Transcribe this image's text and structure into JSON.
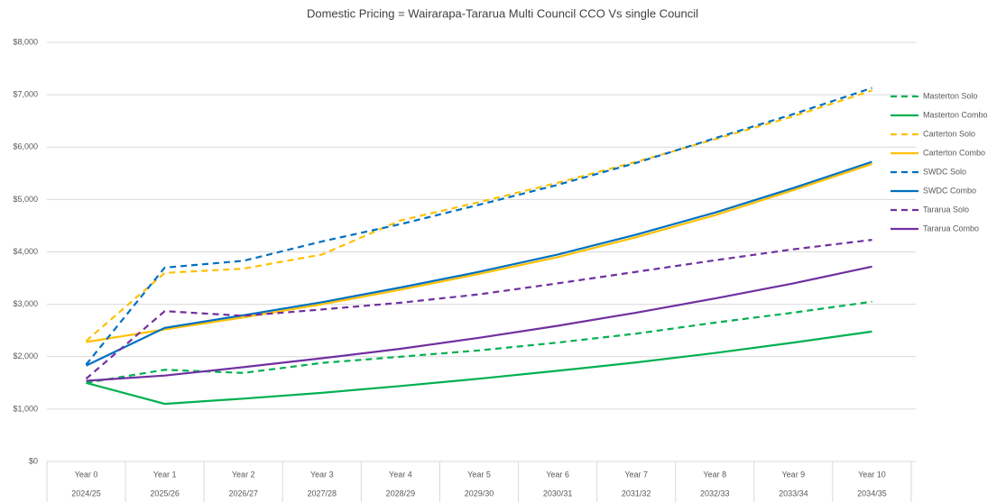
{
  "chart_data": {
    "type": "line",
    "title": "Domestic Pricing = Wairarapa-Tararua Multi Council CCO Vs single Council",
    "categories": [
      "Year 0",
      "Year 1",
      "Year 2",
      "Year 3",
      "Year 4",
      "Year 5",
      "Year 6",
      "Year 7",
      "Year 8",
      "Year 9",
      "Year 10"
    ],
    "periods": [
      "2024/25",
      "2025/26",
      "2026/27",
      "2027/28",
      "2028/29",
      "2029/30",
      "2030/31",
      "2031/32",
      "2032/33",
      "2033/34",
      "2034/35"
    ],
    "ylim": [
      0,
      8000
    ],
    "yticks": [
      {
        "value": 0,
        "label": "$0"
      },
      {
        "value": 1000,
        "label": "$1,000"
      },
      {
        "value": 2000,
        "label": "$2,000"
      },
      {
        "value": 3000,
        "label": "$3,000"
      },
      {
        "value": 4000,
        "label": "$4,000"
      },
      {
        "value": 5000,
        "label": "$5,000"
      },
      {
        "value": 6000,
        "label": "$6,000"
      },
      {
        "value": 7000,
        "label": "$7,000"
      },
      {
        "value": 8000,
        "label": "$8,000"
      }
    ],
    "grid": true,
    "legend": "right",
    "series": [
      {
        "name": "Masterton Solo",
        "color": "#00b050",
        "dashed": true,
        "values": [
          1500,
          1750,
          1690,
          1880,
          2000,
          2120,
          2270,
          2440,
          2650,
          2840,
          3050
        ]
      },
      {
        "name": "Masterton Combo",
        "color": "#00b050",
        "dashed": false,
        "values": [
          1500,
          1100,
          1200,
          1310,
          1440,
          1580,
          1730,
          1890,
          2070,
          2270,
          2480
        ]
      },
      {
        "name": "Carterton Solo",
        "color": "#ffc000",
        "dashed": true,
        "values": [
          2300,
          3600,
          3680,
          3950,
          4600,
          4950,
          5320,
          5720,
          6150,
          6590,
          7080
        ]
      },
      {
        "name": "Carterton Combo",
        "color": "#ffc000",
        "dashed": false,
        "values": [
          2280,
          2520,
          2750,
          3000,
          3280,
          3580,
          3900,
          4280,
          4700,
          5180,
          5680
        ]
      },
      {
        "name": "SWDC Solo",
        "color": "#0070c0",
        "dashed": true,
        "values": [
          1850,
          3700,
          3830,
          4200,
          4530,
          4900,
          5280,
          5700,
          6170,
          6630,
          7130
        ]
      },
      {
        "name": "SWDC Combo",
        "color": "#0070c0",
        "dashed": false,
        "values": [
          1830,
          2550,
          2790,
          3040,
          3320,
          3620,
          3950,
          4330,
          4750,
          5220,
          5720
        ]
      },
      {
        "name": "Tararua Solo",
        "color": "#7030a0",
        "dashed": true,
        "values": [
          1580,
          2870,
          2780,
          2900,
          3030,
          3190,
          3400,
          3620,
          3840,
          4050,
          4230
        ]
      },
      {
        "name": "Tararua Combo",
        "color": "#7030a0",
        "dashed": false,
        "values": [
          1540,
          1640,
          1800,
          1970,
          2150,
          2360,
          2590,
          2840,
          3110,
          3400,
          3720
        ]
      }
    ]
  }
}
